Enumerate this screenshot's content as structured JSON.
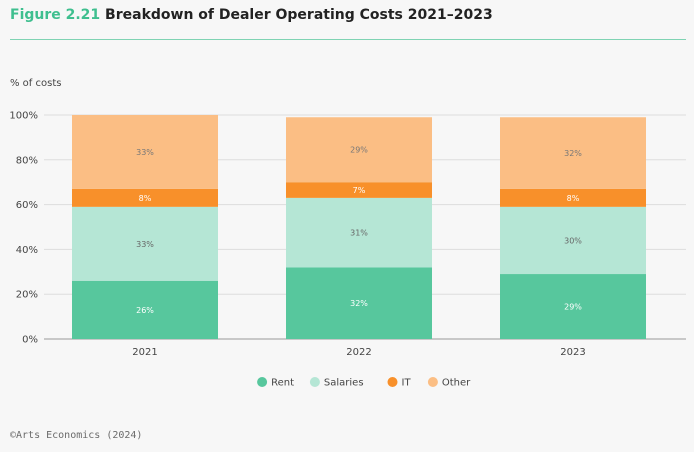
{
  "header": {
    "figure_number": "Figure 2.21",
    "title": "Breakdown of Dealer Operating Costs 2021–2023"
  },
  "footer": {
    "source": "©Arts Economics (2024)"
  },
  "chart_data": {
    "type": "bar",
    "stacked": true,
    "title": "Figure 2.21 Breakdown of Dealer Operating Costs 2021–2023",
    "ylabel": "% of costs",
    "xlabel": "",
    "ylim": [
      0,
      100
    ],
    "yticks": [
      "0%",
      "20%",
      "40%",
      "60%",
      "80%",
      "100%"
    ],
    "categories": [
      "2021",
      "2022",
      "2023"
    ],
    "series": [
      {
        "name": "Rent",
        "values": [
          26,
          32,
          29
        ],
        "labels": [
          "26%",
          "32%",
          "29%"
        ],
        "color": "#57c79d",
        "label_color": "#ffffff"
      },
      {
        "name": "Salaries",
        "values": [
          33,
          31,
          30
        ],
        "labels": [
          "33%",
          "31%",
          "30%"
        ],
        "color": "#b5e6d5",
        "label_color": "#666666"
      },
      {
        "name": "IT",
        "values": [
          8,
          7,
          8
        ],
        "labels": [
          "8%",
          "7%",
          "8%"
        ],
        "color": "#f8902a",
        "label_color": "#ffffff"
      },
      {
        "name": "Other",
        "values": [
          33,
          29,
          32
        ],
        "labels": [
          "33%",
          "29%",
          "32%"
        ],
        "color": "#fbbe84",
        "label_color": "#777777"
      }
    ],
    "grid": true,
    "legend_position": "bottom"
  }
}
